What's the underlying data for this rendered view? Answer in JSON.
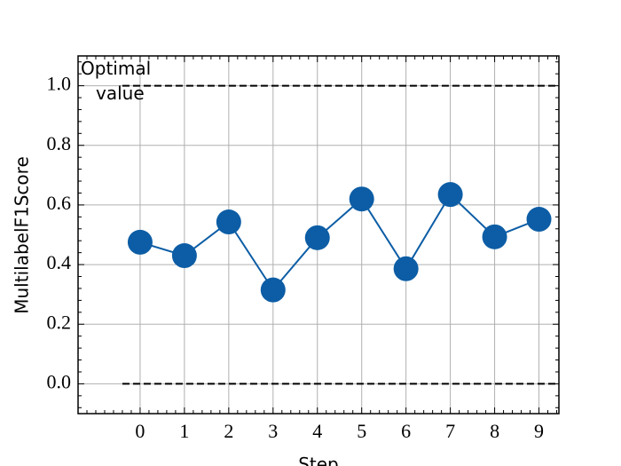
{
  "chart_data": {
    "type": "line",
    "x_label": "Step",
    "y_label": "MultilabelF1Score",
    "x": [
      0,
      1,
      2,
      3,
      4,
      5,
      6,
      7,
      8,
      9
    ],
    "series": [
      {
        "name": "MultilabelF1Score",
        "color": "#0c5da5",
        "values": [
          0.475,
          0.43,
          0.543,
          0.315,
          0.49,
          0.62,
          0.386,
          0.635,
          0.493,
          0.552
        ]
      }
    ],
    "xlim": [
      -1.4,
      9.45
    ],
    "ylim": [
      -0.1,
      1.1
    ],
    "xticks": [
      0,
      1,
      2,
      3,
      4,
      5,
      6,
      7,
      8,
      9
    ],
    "yticks": [
      {
        "value": 0,
        "label": "0.0"
      },
      0.2,
      0.4,
      0.6,
      0.8,
      {
        "value": 1,
        "label": "1.0"
      }
    ],
    "grid": true,
    "hlines": {
      "y": [
        0,
        1
      ],
      "xmin": -0.4,
      "xmax": 9.45
    },
    "annotation": {
      "text": "Optimal value",
      "x": -1.4,
      "y": 1.05
    }
  }
}
